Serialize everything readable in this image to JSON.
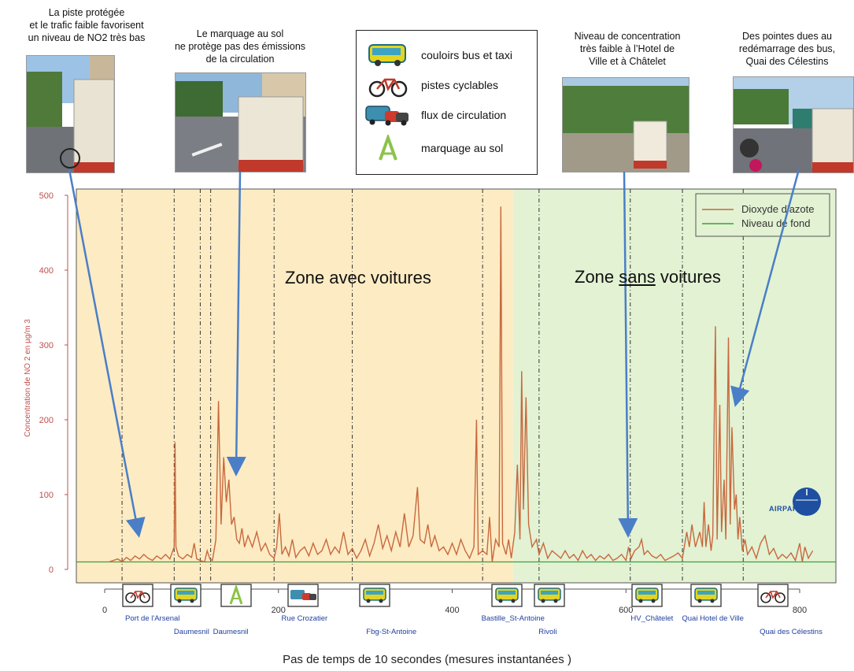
{
  "annotations": [
    {
      "id": "a1",
      "lines": [
        "La piste protégée",
        "et le trafic faible favorisent",
        "un niveau de NO2 très bas"
      ]
    },
    {
      "id": "a2",
      "lines": [
        "Le marquage au sol",
        "ne protège pas des émissions",
        "de la circulation"
      ]
    },
    {
      "id": "a3",
      "lines": [
        "Niveau de concentration",
        "très faible  à l’Hotel de",
        "Ville et à Châtelet"
      ]
    },
    {
      "id": "a4",
      "lines": [
        "Des pointes dues au",
        "redémarrage des bus,",
        "Quai des Célestins"
      ]
    }
  ],
  "icon_legend": [
    {
      "icon": "bus-icon",
      "label": "couloirs bus et taxi"
    },
    {
      "icon": "bicycle-icon",
      "label": "pistes cyclables"
    },
    {
      "icon": "traffic-icon",
      "label": "flux de circulation"
    },
    {
      "icon": "road-marking-icon",
      "label": "marquage au sol"
    }
  ],
  "zones": {
    "left": "Zone avec voitures",
    "right_prefix": "Zone ",
    "right_underlined": "sans",
    "right_suffix": " voitures"
  },
  "colors": {
    "no2": "#c8683d",
    "background_level": "#3aa33a",
    "zone_cars": "#fdebc3",
    "zone_nocars": "#e2f2d3",
    "axis_text": "#c0504d",
    "link_text": "#1f3f9e",
    "arrow": "#4a7ec7"
  },
  "logo": {
    "text": "AIRPARIF"
  },
  "x_axis_title": "Pas de temps de 10 secondes (mesures instantanées )",
  "route_icons": [
    "bicycle-icon",
    "bus-icon",
    "road-marking-icon",
    "traffic-icon",
    "bus-icon",
    "bus-icon",
    "bus-icon",
    "bus-icon",
    "bus-icon",
    "bicycle-icon"
  ],
  "chart_data": {
    "type": "line",
    "ylabel": "Concentration de NO 2 en µg/m 3",
    "xlabel": "Pas de temps de 10 secondes (mesures instantanées )",
    "xlim": [
      0,
      830
    ],
    "ylim": [
      -10,
      510
    ],
    "x_ticks": [
      0,
      200,
      400,
      600,
      800
    ],
    "y_ticks": [
      0,
      100,
      200,
      300,
      400,
      500
    ],
    "legend": [
      "Dioxyde d’azote",
      "Niveau de fond"
    ],
    "legend_position": "top-right",
    "zones": [
      {
        "label": "Zone avec voitures",
        "from": 0,
        "to": 470
      },
      {
        "label": "Zone sans voitures",
        "from": 470,
        "to": 830
      }
    ],
    "section_lines": [
      20,
      80,
      110,
      122,
      195,
      285,
      435,
      500,
      605,
      665,
      735
    ],
    "place_labels": [
      {
        "text": "Port de l'Arsenal",
        "x": 55,
        "row": 1
      },
      {
        "text": "Daumesnil",
        "x": 100,
        "row": 2
      },
      {
        "text": "Daumesnil",
        "x": 145,
        "row": 2
      },
      {
        "text": "Rue Crozatier",
        "x": 230,
        "row": 1
      },
      {
        "text": "Fbg-St-Antoine",
        "x": 330,
        "row": 2
      },
      {
        "text": "Bastille_St-Antoine",
        "x": 470,
        "row": 1
      },
      {
        "text": "Rivoli",
        "x": 510,
        "row": 2
      },
      {
        "text": "HV_Châtelet",
        "x": 630,
        "row": 1
      },
      {
        "text": "Quai Hotel de Ville",
        "x": 700,
        "row": 1
      },
      {
        "text": "Quai des Célestins",
        "x": 790,
        "row": 2
      }
    ],
    "series": [
      {
        "name": "Niveau de fond",
        "type": "hline",
        "value": 10
      },
      {
        "name": "Dioxyde d’azote",
        "points": [
          [
            5,
            10
          ],
          [
            10,
            12
          ],
          [
            15,
            14
          ],
          [
            20,
            10
          ],
          [
            25,
            16
          ],
          [
            30,
            12
          ],
          [
            35,
            18
          ],
          [
            40,
            14
          ],
          [
            45,
            20
          ],
          [
            50,
            15
          ],
          [
            55,
            12
          ],
          [
            60,
            18
          ],
          [
            65,
            14
          ],
          [
            70,
            20
          ],
          [
            75,
            14
          ],
          [
            80,
            30
          ],
          [
            81,
            170
          ],
          [
            82,
            30
          ],
          [
            85,
            18
          ],
          [
            90,
            14
          ],
          [
            95,
            20
          ],
          [
            100,
            16
          ],
          [
            103,
            35
          ],
          [
            106,
            14
          ],
          [
            110,
            12
          ],
          [
            115,
            10
          ],
          [
            118,
            25
          ],
          [
            121,
            14
          ],
          [
            124,
            12
          ],
          [
            128,
            40
          ],
          [
            131,
            225
          ],
          [
            134,
            60
          ],
          [
            137,
            150
          ],
          [
            140,
            90
          ],
          [
            143,
            120
          ],
          [
            146,
            60
          ],
          [
            149,
            70
          ],
          [
            152,
            40
          ],
          [
            155,
            35
          ],
          [
            158,
            55
          ],
          [
            161,
            30
          ],
          [
            165,
            45
          ],
          [
            170,
            30
          ],
          [
            175,
            50
          ],
          [
            180,
            25
          ],
          [
            185,
            35
          ],
          [
            190,
            20
          ],
          [
            195,
            15
          ],
          [
            198,
            30
          ],
          [
            201,
            75
          ],
          [
            204,
            20
          ],
          [
            208,
            30
          ],
          [
            212,
            18
          ],
          [
            216,
            40
          ],
          [
            220,
            16
          ],
          [
            225,
            25
          ],
          [
            230,
            30
          ],
          [
            235,
            18
          ],
          [
            240,
            35
          ],
          [
            245,
            20
          ],
          [
            250,
            25
          ],
          [
            255,
            40
          ],
          [
            260,
            20
          ],
          [
            265,
            30
          ],
          [
            270,
            22
          ],
          [
            275,
            50
          ],
          [
            280,
            20
          ],
          [
            285,
            28
          ],
          [
            290,
            15
          ],
          [
            295,
            25
          ],
          [
            300,
            40
          ],
          [
            305,
            18
          ],
          [
            310,
            35
          ],
          [
            315,
            60
          ],
          [
            320,
            28
          ],
          [
            325,
            45
          ],
          [
            330,
            25
          ],
          [
            335,
            50
          ],
          [
            340,
            30
          ],
          [
            345,
            75
          ],
          [
            350,
            30
          ],
          [
            355,
            45
          ],
          [
            360,
            110
          ],
          [
            363,
            40
          ],
          [
            368,
            35
          ],
          [
            372,
            60
          ],
          [
            376,
            30
          ],
          [
            380,
            45
          ],
          [
            385,
            25
          ],
          [
            390,
            30
          ],
          [
            395,
            20
          ],
          [
            400,
            35
          ],
          [
            405,
            20
          ],
          [
            410,
            40
          ],
          [
            415,
            25
          ],
          [
            420,
            15
          ],
          [
            425,
            30
          ],
          [
            428,
            200
          ],
          [
            430,
            20
          ],
          [
            435,
            25
          ],
          [
            440,
            20
          ],
          [
            443,
            70
          ],
          [
            446,
            10
          ],
          [
            450,
            40
          ],
          [
            454,
            30
          ],
          [
            456,
            485
          ],
          [
            458,
            35
          ],
          [
            462,
            20
          ],
          [
            465,
            40
          ],
          [
            468,
            15
          ],
          [
            472,
            50
          ],
          [
            475,
            140
          ],
          [
            478,
            40
          ],
          [
            480,
            265
          ],
          [
            482,
            80
          ],
          [
            485,
            230
          ],
          [
            488,
            60
          ],
          [
            492,
            30
          ],
          [
            497,
            40
          ],
          [
            500,
            20
          ],
          [
            505,
            35
          ],
          [
            510,
            15
          ],
          [
            515,
            25
          ],
          [
            520,
            20
          ],
          [
            525,
            15
          ],
          [
            530,
            25
          ],
          [
            535,
            15
          ],
          [
            540,
            20
          ],
          [
            545,
            12
          ],
          [
            550,
            25
          ],
          [
            555,
            15
          ],
          [
            560,
            20
          ],
          [
            565,
            12
          ],
          [
            570,
            18
          ],
          [
            575,
            14
          ],
          [
            580,
            20
          ],
          [
            585,
            12
          ],
          [
            590,
            15
          ],
          [
            595,
            20
          ],
          [
            600,
            12
          ],
          [
            603,
            30
          ],
          [
            606,
            15
          ],
          [
            610,
            25
          ],
          [
            615,
            30
          ],
          [
            618,
            40
          ],
          [
            621,
            20
          ],
          [
            625,
            25
          ],
          [
            630,
            18
          ],
          [
            635,
            15
          ],
          [
            640,
            20
          ],
          [
            645,
            12
          ],
          [
            650,
            15
          ],
          [
            655,
            18
          ],
          [
            660,
            22
          ],
          [
            665,
            15
          ],
          [
            670,
            50
          ],
          [
            673,
            30
          ],
          [
            676,
            60
          ],
          [
            680,
            30
          ],
          [
            685,
            50
          ],
          [
            688,
            30
          ],
          [
            690,
            90
          ],
          [
            692,
            30
          ],
          [
            695,
            60
          ],
          [
            698,
            25
          ],
          [
            700,
            45
          ],
          [
            703,
            325
          ],
          [
            705,
            40
          ],
          [
            708,
            220
          ],
          [
            710,
            50
          ],
          [
            713,
            120
          ],
          [
            715,
            40
          ],
          [
            718,
            310
          ],
          [
            720,
            60
          ],
          [
            722,
            190
          ],
          [
            725,
            80
          ],
          [
            727,
            100
          ],
          [
            729,
            40
          ],
          [
            731,
            70
          ],
          [
            734,
            25
          ],
          [
            737,
            40
          ],
          [
            740,
            20
          ],
          [
            745,
            30
          ],
          [
            750,
            15
          ],
          [
            755,
            35
          ],
          [
            760,
            45
          ],
          [
            765,
            20
          ],
          [
            770,
            28
          ],
          [
            775,
            14
          ],
          [
            780,
            20
          ],
          [
            785,
            15
          ],
          [
            790,
            22
          ],
          [
            795,
            12
          ],
          [
            800,
            35
          ],
          [
            803,
            10
          ],
          [
            806,
            30
          ],
          [
            810,
            15
          ],
          [
            815,
            25
          ]
        ]
      }
    ]
  }
}
